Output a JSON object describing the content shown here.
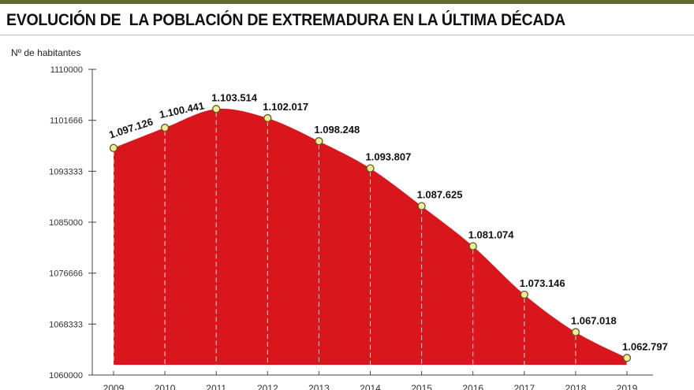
{
  "chart_data": {
    "type": "area",
    "title": "EVOLUCIÓN DE  LA POBLACIÓN DE EXTREMADURA EN LA ÚLTIMA DÉCADA",
    "ylabel": "Nº de habitantes",
    "xlabel": "",
    "categories": [
      "2009",
      "2010",
      "2011",
      "2012",
      "2013",
      "2014",
      "2015",
      "2016",
      "2017",
      "2018",
      "2019"
    ],
    "values": [
      1097126,
      1100441,
      1103514,
      1102017,
      1098248,
      1093807,
      1087625,
      1081074,
      1073146,
      1067018,
      1062797
    ],
    "value_labels": [
      "1.097.126",
      "1.100.441",
      "1.103.514",
      "1.102.017",
      "1.098.248",
      "1.093.807",
      "1.087.625",
      "1.081.074",
      "1.073.146",
      "1.067.018",
      "1.062.797"
    ],
    "ylim": [
      1060000,
      1110000
    ],
    "yticks": [
      1060000,
      1068333,
      1076666,
      1085000,
      1093333,
      1101666,
      1110000
    ],
    "ytick_labels": [
      "1060000",
      "1068333",
      "1076666",
      "1085000",
      "1093333",
      "1101666",
      "1110000"
    ],
    "grid": false,
    "colors": {
      "fill": "#d9161c",
      "point": "#f0ec9a",
      "point_stroke": "#5a5a20",
      "accent_bar": "#5e6b2e"
    }
  }
}
